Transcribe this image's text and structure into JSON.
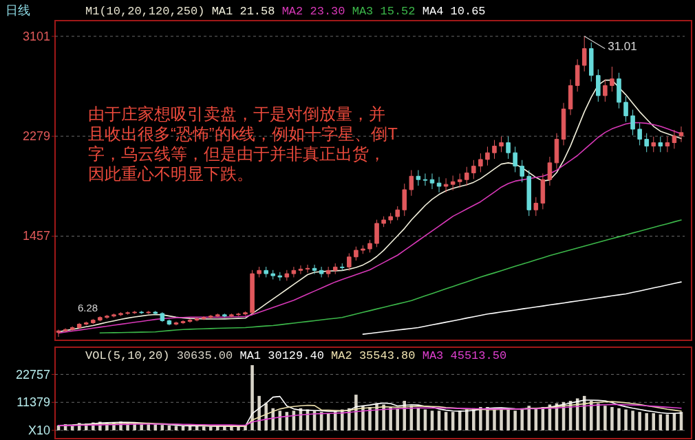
{
  "chart_data": [
    {
      "type": "candlestick",
      "title": "日线",
      "legend_title": "M1(10,20,120,250)",
      "legend": "top left",
      "grid": "y",
      "categories": [
        null,
        null,
        null,
        null,
        null,
        null,
        null,
        null,
        null,
        null,
        null,
        null,
        null,
        null,
        null,
        null,
        null,
        null,
        null,
        null,
        null,
        null,
        null,
        null,
        null,
        null,
        null,
        null,
        null,
        null,
        null,
        null,
        null,
        null,
        null,
        null,
        null,
        null,
        null,
        null,
        null,
        null,
        null,
        null,
        null,
        null,
        null,
        null,
        null,
        null,
        null,
        null,
        null,
        null,
        null,
        null,
        null,
        null,
        null,
        null,
        null,
        null,
        null,
        null,
        null,
        null,
        null,
        null,
        null,
        null,
        null,
        null,
        null,
        null,
        null,
        null,
        null,
        null,
        null,
        null,
        null,
        null,
        null,
        null,
        null,
        null,
        null,
        null,
        null,
        null,
        null
      ],
      "ohlc": [
        [
          665,
          688,
          628,
          678
        ],
        [
          678,
          699,
          668,
          689
        ],
        [
          689,
          715,
          679,
          705
        ],
        [
          705,
          743,
          695,
          733
        ],
        [
          733,
          754,
          723,
          744
        ],
        [
          744,
          776,
          734,
          766
        ],
        [
          766,
          798,
          756,
          788
        ],
        [
          788,
          809,
          778,
          799
        ],
        [
          799,
          820,
          789,
          810
        ],
        [
          810,
          831,
          800,
          821
        ],
        [
          821,
          837,
          811,
          827
        ],
        [
          827,
          842,
          817,
          832
        ],
        [
          832,
          842,
          817,
          827
        ],
        [
          827,
          842,
          817,
          832
        ],
        [
          832,
          842,
          811,
          821
        ],
        [
          821,
          831,
          751,
          761
        ],
        [
          761,
          771,
          723,
          733
        ],
        [
          733,
          754,
          723,
          744
        ],
        [
          744,
          765,
          734,
          755
        ],
        [
          755,
          776,
          745,
          766
        ],
        [
          766,
          787,
          756,
          777
        ],
        [
          777,
          798,
          767,
          788
        ],
        [
          788,
          809,
          778,
          799
        ],
        [
          799,
          820,
          789,
          810
        ],
        [
          810,
          820,
          789,
          799
        ],
        [
          799,
          820,
          789,
          810
        ],
        [
          810,
          826,
          800,
          816
        ],
        [
          816,
          837,
          806,
          827
        ],
        [
          827,
          1178,
          817,
          1148
        ],
        [
          1148,
          1205,
          1118,
          1175
        ],
        [
          1175,
          1205,
          1118,
          1148
        ],
        [
          1148,
          1178,
          1101,
          1131
        ],
        [
          1131,
          1161,
          1090,
          1120
        ],
        [
          1120,
          1178,
          1090,
          1148
        ],
        [
          1148,
          1205,
          1118,
          1175
        ],
        [
          1175,
          1216,
          1145,
          1186
        ],
        [
          1186,
          1222,
          1156,
          1192
        ],
        [
          1192,
          1222,
          1145,
          1175
        ],
        [
          1175,
          1205,
          1118,
          1148
        ],
        [
          1148,
          1205,
          1118,
          1175
        ],
        [
          1175,
          1233,
          1145,
          1203
        ],
        [
          1203,
          1233,
          1173,
          1203
        ],
        [
          1203,
          1316,
          1173,
          1286
        ],
        [
          1286,
          1371,
          1256,
          1341
        ],
        [
          1341,
          1382,
          1311,
          1352
        ],
        [
          1352,
          1427,
          1322,
          1397
        ],
        [
          1397,
          1592,
          1367,
          1562
        ],
        [
          1562,
          1620,
          1532,
          1590
        ],
        [
          1590,
          1648,
          1560,
          1618
        ],
        [
          1618,
          1703,
          1588,
          1673
        ],
        [
          1673,
          1889,
          1623,
          1839
        ],
        [
          1839,
          2000,
          1789,
          1950
        ],
        [
          1950,
          2000,
          1872,
          1922
        ],
        [
          1922,
          1972,
          1872,
          1922
        ],
        [
          1922,
          1972,
          1844,
          1894
        ],
        [
          1894,
          1944,
          1817,
          1867
        ],
        [
          1867,
          1933,
          1817,
          1883
        ],
        [
          1883,
          1955,
          1833,
          1905
        ],
        [
          1905,
          1972,
          1855,
          1922
        ],
        [
          1922,
          2027,
          1872,
          1977
        ],
        [
          1977,
          2083,
          1927,
          2033
        ],
        [
          2033,
          2138,
          1983,
          2088
        ],
        [
          2088,
          2193,
          2038,
          2143
        ],
        [
          2143,
          2248,
          2093,
          2198
        ],
        [
          2198,
          2276,
          2148,
          2226
        ],
        [
          2226,
          2276,
          2093,
          2143
        ],
        [
          2143,
          2193,
          1983,
          2033
        ],
        [
          2033,
          2083,
          1900,
          1950
        ],
        [
          1950,
          2000,
          1623,
          1673
        ],
        [
          1673,
          1778,
          1623,
          1728
        ],
        [
          1728,
          1972,
          1678,
          1922
        ],
        [
          1922,
          2110,
          1872,
          2060
        ],
        [
          2060,
          2304,
          2010,
          2254
        ],
        [
          2254,
          2553,
          2204,
          2503
        ],
        [
          2503,
          2746,
          2453,
          2696
        ],
        [
          2696,
          2912,
          2646,
          2862
        ],
        [
          2862,
          3101,
          2812,
          3000
        ],
        [
          3000,
          3050,
          2729,
          2779
        ],
        [
          2779,
          2829,
          2563,
          2613
        ],
        [
          2613,
          2746,
          2563,
          2696
        ],
        [
          2696,
          2851,
          2646,
          2751
        ],
        [
          2751,
          2801,
          2508,
          2558
        ],
        [
          2558,
          2608,
          2397,
          2447
        ],
        [
          2447,
          2497,
          2287,
          2337
        ],
        [
          2337,
          2387,
          2204,
          2254
        ],
        [
          2254,
          2304,
          2148,
          2198
        ],
        [
          2198,
          2276,
          2148,
          2226
        ],
        [
          2226,
          2276,
          2148,
          2198
        ],
        [
          2198,
          2276,
          2148,
          2226
        ],
        [
          2226,
          2331,
          2176,
          2281
        ],
        [
          2281,
          2359,
          2231,
          2309
        ]
      ],
      "colors": [
        "#e0585c",
        "#e0585c",
        "#e0585c",
        "#e0585c",
        "#e0585c",
        "#e0585c",
        "#e0585c",
        "#e0585c",
        "#e0585c",
        "#e0585c",
        "#e0585c",
        "#e0585c",
        "#66d9d9",
        "#e0585c",
        "#66d9d9",
        "#66d9d9",
        "#66d9d9",
        "#e0585c",
        "#e0585c",
        "#e0585c",
        "#e0585c",
        "#e0585c",
        "#e0585c",
        "#e0585c",
        "#66d9d9",
        "#e0585c",
        "#e0585c",
        "#e0585c",
        "#e0585c",
        "#e0585c",
        "#66d9d9",
        "#66d9d9",
        "#66d9d9",
        "#e0585c",
        "#e0585c",
        "#e0585c",
        "#e0585c",
        "#66d9d9",
        "#66d9d9",
        "#e0585c",
        "#e0585c",
        "#66d9d9",
        "#e0585c",
        "#e0585c",
        "#e0585c",
        "#e0585c",
        "#e0585c",
        "#e0585c",
        "#e0585c",
        "#e0585c",
        "#e0585c",
        "#e0585c",
        "#66d9d9",
        "#66d9d9",
        "#66d9d9",
        "#66d9d9",
        "#e0585c",
        "#e0585c",
        "#e0585c",
        "#e0585c",
        "#e0585c",
        "#e0585c",
        "#e0585c",
        "#e0585c",
        "#e0585c",
        "#66d9d9",
        "#66d9d9",
        "#66d9d9",
        "#66d9d9",
        "#e0585c",
        "#e0585c",
        "#e0585c",
        "#e0585c",
        "#e0585c",
        "#e0585c",
        "#e0585c",
        "#e0585c",
        "#66d9d9",
        "#66d9d9",
        "#e0585c",
        "#e0585c",
        "#66d9d9",
        "#66d9d9",
        "#66d9d9",
        "#66d9d9",
        "#66d9d9",
        "#e0585c",
        "#66d9d9",
        "#e0585c",
        "#e0585c",
        "#e0585c"
      ],
      "series": [
        {
          "name": "MA1 21.58",
          "type": "line",
          "color": "#f2f0dc",
          "values": [
            670,
            680,
            690,
            700,
            712,
            722,
            735,
            748,
            760,
            772,
            783,
            792,
            800,
            808,
            812,
            810,
            800,
            790,
            784,
            780,
            778,
            776,
            775,
            775,
            776,
            778,
            780,
            782,
            820,
            860,
            900,
            940,
            980,
            1020,
            1060,
            1100,
            1140,
            1160,
            1165,
            1170,
            1172,
            1175,
            1185,
            1200,
            1220,
            1250,
            1290,
            1340,
            1400,
            1460,
            1520,
            1590,
            1650,
            1710,
            1760,
            1800,
            1830,
            1850,
            1865,
            1880,
            1900,
            1930,
            1970,
            2010,
            2050,
            2060,
            2050,
            2020,
            1980,
            1940,
            1910,
            1920,
            1980,
            2080,
            2200,
            2340,
            2480,
            2600,
            2700,
            2740,
            2740,
            2680,
            2620,
            2550,
            2480,
            2420,
            2360,
            2320,
            2300,
            2280,
            2260
          ]
        },
        {
          "name": "MA2 23.30",
          "type": "line",
          "color": "#d838b8",
          "values": [
            660,
            668,
            676,
            684,
            692,
            700,
            708,
            716,
            724,
            732,
            740,
            748,
            756,
            764,
            772,
            778,
            782,
            786,
            788,
            790,
            790,
            790,
            790,
            790,
            790,
            792,
            794,
            796,
            810,
            830,
            850,
            870,
            890,
            910,
            930,
            955,
            980,
            1005,
            1030,
            1055,
            1080,
            1100,
            1120,
            1140,
            1160,
            1180,
            1210,
            1240,
            1270,
            1300,
            1340,
            1380,
            1420,
            1460,
            1500,
            1540,
            1580,
            1620,
            1650,
            1680,
            1710,
            1740,
            1780,
            1820,
            1860,
            1890,
            1910,
            1920,
            1930,
            1940,
            1950,
            1970,
            2000,
            2040,
            2080,
            2120,
            2170,
            2220,
            2270,
            2310,
            2340,
            2360,
            2380,
            2390,
            2390,
            2385,
            2375,
            2360,
            2340,
            2320,
            2300
          ]
        },
        {
          "name": "MA3 15.52",
          "type": "line",
          "color": "#3cb84a",
          "values": [
            null,
            null,
            null,
            null,
            null,
            null,
            661,
            662,
            663,
            664,
            665,
            666,
            667,
            668,
            669,
            675,
            680,
            685,
            689,
            691,
            693,
            695,
            697,
            699,
            700,
            702,
            703,
            705,
            709,
            714,
            718,
            722,
            728,
            735,
            741,
            748,
            755,
            761,
            768,
            775,
            781,
            788,
            802,
            816,
            830,
            844,
            858,
            872,
            886,
            899,
            913,
            927,
            946,
            966,
            985,
            1004,
            1024,
            1043,
            1062,
            1081,
            1101,
            1120,
            1138,
            1155,
            1173,
            1191,
            1209,
            1226,
            1244,
            1262,
            1279,
            1297,
            1313,
            1328,
            1344,
            1359,
            1375,
            1390,
            1406,
            1421,
            1437,
            1452,
            1467,
            1483,
            1498,
            1513,
            1529,
            1544,
            1559,
            1575,
            1590
          ]
        },
        {
          "name": "MA4 10.65",
          "type": "line",
          "color": "#ffffff",
          "values": [
            null,
            null,
            null,
            null,
            null,
            null,
            null,
            null,
            null,
            null,
            null,
            null,
            null,
            null,
            null,
            null,
            null,
            null,
            null,
            null,
            null,
            null,
            null,
            null,
            null,
            null,
            null,
            null,
            null,
            null,
            null,
            null,
            null,
            null,
            null,
            null,
            null,
            null,
            null,
            null,
            null,
            null,
            null,
            null,
            650,
            657,
            664,
            671,
            678,
            685,
            691,
            698,
            705,
            716,
            727,
            738,
            749,
            760,
            771,
            783,
            794,
            805,
            816,
            824,
            833,
            841,
            849,
            858,
            866,
            874,
            882,
            891,
            899,
            907,
            916,
            924,
            932,
            941,
            949,
            957,
            966,
            974,
            982,
            994,
            1006,
            1019,
            1031,
            1043,
            1055,
            1068,
            1080
          ]
        }
      ],
      "ylim": [
        600,
        3230
      ],
      "yticks": [
        1457,
        2279,
        3101
      ],
      "annotations": [
        "由于庄家想吸引卖盘，于是对倒放量，并且收出很多“恐怖”的k线，例如十字星、倒T字，乌云线等，但是由于并非真正出货，因此重心不明显下跌。",
        "31.01",
        "6.28"
      ]
    },
    {
      "type": "bar",
      "legend_title": "VOL(5,10,20)",
      "legend": "top left",
      "grid": "y",
      "categories": [
        null,
        null,
        null,
        null,
        null,
        null,
        null,
        null,
        null,
        null,
        null,
        null,
        null,
        null,
        null,
        null,
        null,
        null,
        null,
        null,
        null,
        null,
        null,
        null,
        null,
        null,
        null,
        null,
        null,
        null,
        null,
        null,
        null,
        null,
        null,
        null,
        null,
        null,
        null,
        null,
        null,
        null,
        null,
        null,
        null,
        null,
        null,
        null,
        null,
        null,
        null,
        null,
        null,
        null,
        null,
        null,
        null,
        null,
        null,
        null,
        null,
        null,
        null,
        null,
        null,
        null,
        null,
        null,
        null,
        null,
        null,
        null,
        null,
        null,
        null,
        null,
        null,
        null,
        null,
        null,
        null,
        null,
        null,
        null,
        null,
        null,
        null,
        null,
        null,
        null,
        null
      ],
      "series": [
        {
          "name": "30635.00",
          "color": "#d8d4c8",
          "values": [
            2000,
            2500,
            2200,
            3000,
            2800,
            3200,
            3500,
            3000,
            3300,
            3600,
            3000,
            2800,
            2600,
            2500,
            2400,
            2200,
            2000,
            1800,
            1700,
            1800,
            1900,
            1600,
            1500,
            1700,
            1600,
            1500,
            1800,
            2000,
            26500,
            14000,
            11000,
            9000,
            8000,
            7500,
            8000,
            9000,
            8500,
            8000,
            7500,
            7000,
            8000,
            8500,
            9000,
            14500,
            10000,
            9500,
            11000,
            10500,
            9500,
            9000,
            12000,
            10000,
            9000,
            8500,
            8000,
            8000,
            7500,
            7500,
            8000,
            8500,
            9000,
            9500,
            9500,
            9000,
            9000,
            8500,
            8000,
            9000,
            10000,
            9000,
            9500,
            10500,
            11000,
            11500,
            12000,
            13000,
            14000,
            12000,
            11000,
            10000,
            9500,
            9000,
            8500,
            8000,
            7500,
            7000,
            7000,
            6500,
            6500,
            7000,
            7500
          ]
        },
        {
          "name": "MA1 30129.40",
          "type": "line",
          "color": "#ffffff",
          "values": [
            2000,
            2100,
            2200,
            2400,
            2500,
            2700,
            3000,
            3100,
            3200,
            3300,
            3300,
            3200,
            3000,
            2800,
            2600,
            2500,
            2300,
            2100,
            1900,
            1800,
            1800,
            1800,
            1700,
            1700,
            1700,
            1600,
            1600,
            1700,
            6800,
            9000,
            11000,
            13500,
            13800,
            9900,
            8700,
            8200,
            8200,
            8100,
            8000,
            7800,
            7800,
            7900,
            8200,
            9600,
            10000,
            10300,
            10800,
            11100,
            10900,
            9900,
            10200,
            10400,
            10300,
            9800,
            9500,
            8700,
            8200,
            7900,
            7800,
            7900,
            8100,
            8500,
            8900,
            9100,
            9200,
            9000,
            8800,
            8700,
            8900,
            8900,
            9100,
            9400,
            10000,
            10500,
            11100,
            11700,
            12300,
            12300,
            12200,
            12000,
            11300,
            10300,
            9600,
            9000,
            8500,
            8000,
            7600,
            7200,
            6900,
            6900,
            7100
          ]
        },
        {
          "name": "MA2 35543.80",
          "type": "line",
          "color": "#efe3b0",
          "values": [
            2000,
            2000,
            2100,
            2200,
            2300,
            2400,
            2500,
            2600,
            2700,
            2800,
            2900,
            2900,
            2900,
            2900,
            2800,
            2700,
            2600,
            2500,
            2300,
            2200,
            2100,
            2000,
            1900,
            1800,
            1800,
            1700,
            1700,
            1700,
            4200,
            5400,
            6500,
            7700,
            8700,
            9300,
            9700,
            10000,
            10200,
            10100,
            8300,
            8200,
            8100,
            8000,
            8100,
            8700,
            9000,
            9200,
            9300,
            9600,
            9500,
            9400,
            9500,
            9700,
            9800,
            9800,
            9700,
            9600,
            9300,
            9100,
            8900,
            8700,
            8600,
            8500,
            8400,
            8400,
            8500,
            8500,
            8600,
            8700,
            8900,
            9000,
            9100,
            9300,
            9600,
            9900,
            10200,
            10500,
            10800,
            11200,
            11400,
            11600,
            11700,
            11500,
            11200,
            10900,
            10500,
            10000,
            9600,
            9100,
            8600,
            8200,
            7800
          ]
        },
        {
          "name": "MA3 45513.50",
          "type": "line",
          "color": "#e040d0",
          "values": [
            2000,
            2000,
            2000,
            2100,
            2100,
            2200,
            2200,
            2300,
            2300,
            2400,
            2400,
            2500,
            2500,
            2600,
            2600,
            2600,
            2500,
            2500,
            2400,
            2400,
            2300,
            2300,
            2200,
            2200,
            2200,
            2200,
            2100,
            2100,
            3400,
            4000,
            4500,
            5000,
            5400,
            5700,
            6000,
            6300,
            6500,
            6700,
            6800,
            6900,
            7000,
            7100,
            7300,
            7600,
            7900,
            8100,
            8300,
            8500,
            8700,
            8800,
            8900,
            9000,
            9100,
            9100,
            9100,
            9100,
            9000,
            9000,
            8900,
            8900,
            8800,
            8800,
            8700,
            8700,
            8700,
            8700,
            8700,
            8700,
            8800,
            8800,
            8900,
            9000,
            9100,
            9300,
            9500,
            9700,
            9900,
            10100,
            10300,
            10400,
            10500,
            10500,
            10400,
            10300,
            10200,
            10000,
            9800,
            9600,
            9400,
            9200,
            9000
          ]
        }
      ],
      "ylim": [
        0,
        33800
      ],
      "yticks": [
        {
          "value": 0,
          "label": "X10"
        },
        11379,
        22757
      ]
    }
  ]
}
